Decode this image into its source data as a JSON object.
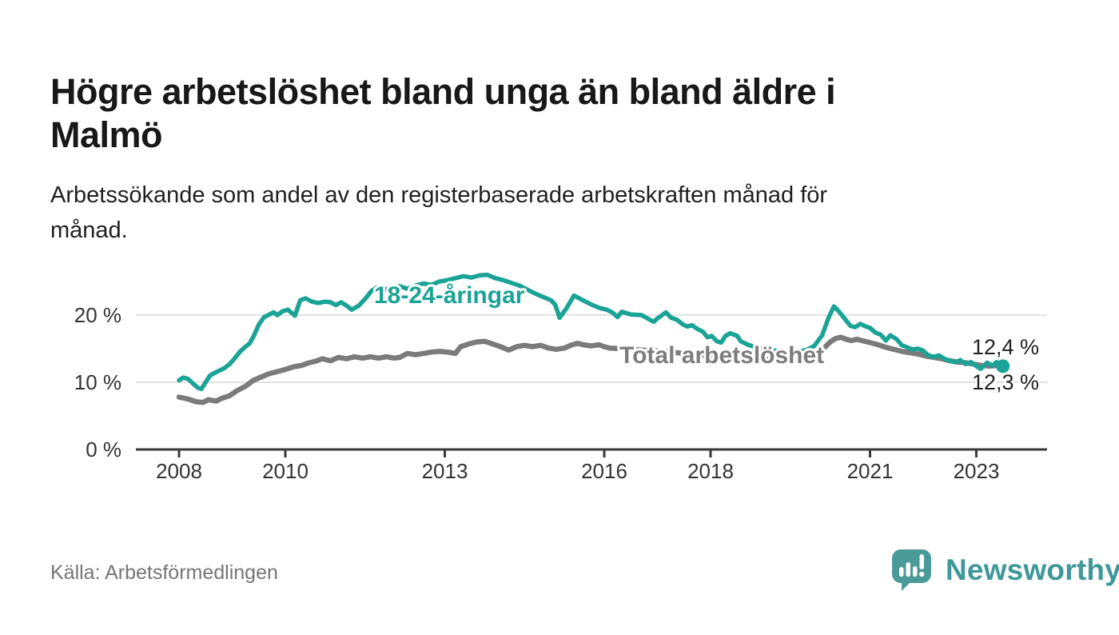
{
  "header": {
    "title": "Högre arbetslöshet bland unga än bland äldre i Malmö",
    "title_lines": [
      "Högre arbetslöshet bland unga än bland äldre i",
      "Malmö"
    ],
    "subtitle": "Arbetssökande som andel av den registerbaserade arbetskraften månad för månad.",
    "subtitle_lines": [
      "Arbetssökande som andel av den registerbaserade arbetskraften månad för",
      "månad."
    ]
  },
  "footer": {
    "source": "Källa: Arbetsförmedlingen",
    "logo_text": "Newsworthy",
    "logo_icon": "bar-chart-speech-bubble"
  },
  "colors": {
    "youth_line": "#1aa396",
    "total_line": "#7b7b7b",
    "total_label": "#7d7d7d",
    "grid": "#e2e2e2",
    "axis": "#3a3a3a",
    "tick_label": "#333333",
    "title_text": "#181818",
    "source_text": "#767676",
    "logo_teal": "#4a9b98",
    "logo_text_teal": "#3f9899"
  },
  "chart_data": {
    "type": "line",
    "title": "Högre arbetslöshet bland unga än bland äldre i Malmö",
    "subtitle": "Arbetssökande som andel av den registerbaserade arbetskraften månad för månad.",
    "unit": "%",
    "grid": "horizontal",
    "legend_position": "inline-labels",
    "x_ticks": [
      2008,
      2010,
      2013,
      2016,
      2018,
      2021,
      2023
    ],
    "x_tick_labels": [
      "2008",
      "2010",
      "2013",
      "2016",
      "2018",
      "2021",
      "2023"
    ],
    "y_ticks": [
      0,
      10,
      20
    ],
    "y_tick_labels": [
      "0 %",
      "10 %",
      "20 %"
    ],
    "x_range": [
      2007.2,
      2024.3
    ],
    "y_range": [
      0,
      27.5
    ],
    "series": [
      {
        "name": "18-24-åringar",
        "color": "#1aa396",
        "end_label": "12,4 %",
        "end_value": 12.4,
        "end_dot": true,
        "points": [
          [
            2008.0,
            10.3
          ],
          [
            2008.08,
            10.7
          ],
          [
            2008.17,
            10.5
          ],
          [
            2008.25,
            9.9
          ],
          [
            2008.35,
            9.2
          ],
          [
            2008.42,
            9.0
          ],
          [
            2008.5,
            10.0
          ],
          [
            2008.58,
            11.0
          ],
          [
            2008.67,
            11.4
          ],
          [
            2008.75,
            11.7
          ],
          [
            2008.85,
            12.1
          ],
          [
            2008.95,
            12.7
          ],
          [
            2009.05,
            13.6
          ],
          [
            2009.15,
            14.6
          ],
          [
            2009.25,
            15.3
          ],
          [
            2009.33,
            15.8
          ],
          [
            2009.4,
            16.8
          ],
          [
            2009.5,
            18.6
          ],
          [
            2009.6,
            19.7
          ],
          [
            2009.7,
            20.1
          ],
          [
            2009.78,
            20.4
          ],
          [
            2009.85,
            20.0
          ],
          [
            2009.95,
            20.6
          ],
          [
            2010.05,
            20.8
          ],
          [
            2010.12,
            20.3
          ],
          [
            2010.18,
            19.9
          ],
          [
            2010.28,
            22.2
          ],
          [
            2010.38,
            22.5
          ],
          [
            2010.5,
            22.0
          ],
          [
            2010.62,
            21.8
          ],
          [
            2010.75,
            22.0
          ],
          [
            2010.85,
            21.9
          ],
          [
            2010.95,
            21.5
          ],
          [
            2011.05,
            21.9
          ],
          [
            2011.15,
            21.4
          ],
          [
            2011.25,
            20.8
          ],
          [
            2011.38,
            21.4
          ],
          [
            2011.5,
            22.4
          ],
          [
            2011.62,
            23.6
          ],
          [
            2011.72,
            24.1
          ],
          [
            2011.85,
            23.8
          ],
          [
            2012.0,
            24.0
          ],
          [
            2012.15,
            24.3
          ],
          [
            2012.3,
            23.9
          ],
          [
            2012.45,
            24.4
          ],
          [
            2012.6,
            24.7
          ],
          [
            2012.75,
            24.5
          ],
          [
            2012.9,
            25.0
          ],
          [
            2013.05,
            25.2
          ],
          [
            2013.2,
            25.5
          ],
          [
            2013.35,
            25.8
          ],
          [
            2013.5,
            25.6
          ],
          [
            2013.65,
            25.9
          ],
          [
            2013.8,
            26.0
          ],
          [
            2013.95,
            25.5
          ],
          [
            2014.1,
            25.2
          ],
          [
            2014.25,
            24.8
          ],
          [
            2014.4,
            24.4
          ],
          [
            2014.55,
            23.8
          ],
          [
            2014.7,
            23.2
          ],
          [
            2014.85,
            22.7
          ],
          [
            2015.0,
            22.2
          ],
          [
            2015.08,
            21.5
          ],
          [
            2015.16,
            19.6
          ],
          [
            2015.28,
            20.9
          ],
          [
            2015.43,
            22.9
          ],
          [
            2015.6,
            22.2
          ],
          [
            2015.75,
            21.6
          ],
          [
            2015.9,
            21.1
          ],
          [
            2016.05,
            20.8
          ],
          [
            2016.15,
            20.4
          ],
          [
            2016.25,
            19.7
          ],
          [
            2016.33,
            20.5
          ],
          [
            2016.5,
            20.1
          ],
          [
            2016.7,
            20.0
          ],
          [
            2016.93,
            19.0
          ],
          [
            2017.0,
            19.5
          ],
          [
            2017.16,
            20.4
          ],
          [
            2017.26,
            19.6
          ],
          [
            2017.37,
            19.3
          ],
          [
            2017.46,
            18.7
          ],
          [
            2017.56,
            18.3
          ],
          [
            2017.65,
            18.5
          ],
          [
            2017.76,
            17.9
          ],
          [
            2017.86,
            17.5
          ],
          [
            2017.94,
            16.7
          ],
          [
            2018.02,
            16.9
          ],
          [
            2018.12,
            16.1
          ],
          [
            2018.2,
            15.9
          ],
          [
            2018.28,
            16.9
          ],
          [
            2018.37,
            17.3
          ],
          [
            2018.5,
            16.9
          ],
          [
            2018.57,
            16.1
          ],
          [
            2018.7,
            15.6
          ],
          [
            2018.9,
            15.1
          ],
          [
            2019.1,
            14.8
          ],
          [
            2019.35,
            14.6
          ],
          [
            2019.6,
            14.5
          ],
          [
            2019.8,
            14.8
          ],
          [
            2019.95,
            15.4
          ],
          [
            2020.1,
            17.0
          ],
          [
            2020.22,
            19.6
          ],
          [
            2020.32,
            21.3
          ],
          [
            2020.42,
            20.5
          ],
          [
            2020.53,
            19.4
          ],
          [
            2020.63,
            18.4
          ],
          [
            2020.72,
            18.2
          ],
          [
            2020.82,
            18.7
          ],
          [
            2020.92,
            18.3
          ],
          [
            2021.0,
            18.1
          ],
          [
            2021.1,
            17.4
          ],
          [
            2021.2,
            17.1
          ],
          [
            2021.3,
            16.2
          ],
          [
            2021.38,
            17.0
          ],
          [
            2021.5,
            16.4
          ],
          [
            2021.6,
            15.5
          ],
          [
            2021.7,
            15.2
          ],
          [
            2021.8,
            14.9
          ],
          [
            2021.9,
            15.0
          ],
          [
            2022.0,
            14.7
          ],
          [
            2022.1,
            14.0
          ],
          [
            2022.2,
            13.8
          ],
          [
            2022.3,
            14.0
          ],
          [
            2022.4,
            13.5
          ],
          [
            2022.5,
            13.2
          ],
          [
            2022.6,
            13.0
          ],
          [
            2022.7,
            13.3
          ],
          [
            2022.8,
            12.7
          ],
          [
            2022.9,
            13.0
          ],
          [
            2023.0,
            12.4
          ],
          [
            2023.08,
            12.0
          ],
          [
            2023.2,
            12.9
          ],
          [
            2023.3,
            12.5
          ],
          [
            2023.38,
            13.0
          ],
          [
            2023.5,
            12.4
          ]
        ]
      },
      {
        "name": "Total arbetslöshet",
        "color": "#7b7b7b",
        "end_label": "12,3 %",
        "end_value": 12.3,
        "end_dot": false,
        "points": [
          [
            2008.0,
            7.8
          ],
          [
            2008.17,
            7.5
          ],
          [
            2008.33,
            7.1
          ],
          [
            2008.45,
            7.0
          ],
          [
            2008.55,
            7.4
          ],
          [
            2008.7,
            7.2
          ],
          [
            2008.8,
            7.6
          ],
          [
            2008.95,
            8.0
          ],
          [
            2009.1,
            8.8
          ],
          [
            2009.25,
            9.4
          ],
          [
            2009.4,
            10.3
          ],
          [
            2009.55,
            10.8
          ],
          [
            2009.7,
            11.3
          ],
          [
            2009.85,
            11.6
          ],
          [
            2010.0,
            11.9
          ],
          [
            2010.15,
            12.3
          ],
          [
            2010.3,
            12.5
          ],
          [
            2010.45,
            12.9
          ],
          [
            2010.55,
            13.1
          ],
          [
            2010.7,
            13.5
          ],
          [
            2010.85,
            13.2
          ],
          [
            2011.0,
            13.7
          ],
          [
            2011.15,
            13.5
          ],
          [
            2011.3,
            13.8
          ],
          [
            2011.45,
            13.6
          ],
          [
            2011.6,
            13.8
          ],
          [
            2011.75,
            13.6
          ],
          [
            2011.9,
            13.8
          ],
          [
            2012.05,
            13.6
          ],
          [
            2012.15,
            13.7
          ],
          [
            2012.3,
            14.3
          ],
          [
            2012.45,
            14.1
          ],
          [
            2012.6,
            14.3
          ],
          [
            2012.75,
            14.5
          ],
          [
            2012.9,
            14.6
          ],
          [
            2013.05,
            14.5
          ],
          [
            2013.2,
            14.3
          ],
          [
            2013.3,
            15.3
          ],
          [
            2013.45,
            15.7
          ],
          [
            2013.6,
            16.0
          ],
          [
            2013.75,
            16.1
          ],
          [
            2013.9,
            15.7
          ],
          [
            2014.05,
            15.3
          ],
          [
            2014.2,
            14.8
          ],
          [
            2014.35,
            15.3
          ],
          [
            2014.5,
            15.5
          ],
          [
            2014.65,
            15.3
          ],
          [
            2014.8,
            15.5
          ],
          [
            2014.95,
            15.1
          ],
          [
            2015.1,
            14.9
          ],
          [
            2015.25,
            15.1
          ],
          [
            2015.4,
            15.6
          ],
          [
            2015.5,
            15.8
          ],
          [
            2015.6,
            15.6
          ],
          [
            2015.75,
            15.4
          ],
          [
            2015.9,
            15.6
          ],
          [
            2016.0,
            15.3
          ],
          [
            2016.1,
            15.1
          ],
          [
            2016.3,
            15.0
          ],
          [
            2016.5,
            14.9
          ],
          [
            2016.7,
            14.8
          ],
          [
            2016.9,
            14.7
          ],
          [
            2017.1,
            14.6
          ],
          [
            2017.35,
            14.4
          ],
          [
            2017.6,
            14.2
          ],
          [
            2017.85,
            14.0
          ],
          [
            2018.1,
            13.9
          ],
          [
            2018.35,
            13.7
          ],
          [
            2018.6,
            13.6
          ],
          [
            2018.85,
            13.5
          ],
          [
            2019.1,
            13.4
          ],
          [
            2019.35,
            13.3
          ],
          [
            2019.6,
            13.4
          ],
          [
            2019.8,
            13.6
          ],
          [
            2019.95,
            13.9
          ],
          [
            2020.1,
            14.8
          ],
          [
            2020.25,
            16.0
          ],
          [
            2020.35,
            16.5
          ],
          [
            2020.45,
            16.7
          ],
          [
            2020.55,
            16.4
          ],
          [
            2020.65,
            16.2
          ],
          [
            2020.75,
            16.4
          ],
          [
            2020.85,
            16.2
          ],
          [
            2021.0,
            15.9
          ],
          [
            2021.15,
            15.6
          ],
          [
            2021.3,
            15.2
          ],
          [
            2021.45,
            14.9
          ],
          [
            2021.6,
            14.6
          ],
          [
            2021.75,
            14.4
          ],
          [
            2021.9,
            14.2
          ],
          [
            2022.05,
            13.9
          ],
          [
            2022.2,
            13.7
          ],
          [
            2022.35,
            13.5
          ],
          [
            2022.5,
            13.2
          ],
          [
            2022.65,
            13.0
          ],
          [
            2022.8,
            12.9
          ],
          [
            2022.95,
            12.7
          ],
          [
            2023.1,
            12.5
          ],
          [
            2023.25,
            12.4
          ],
          [
            2023.4,
            12.5
          ],
          [
            2023.5,
            12.3
          ]
        ]
      }
    ]
  }
}
